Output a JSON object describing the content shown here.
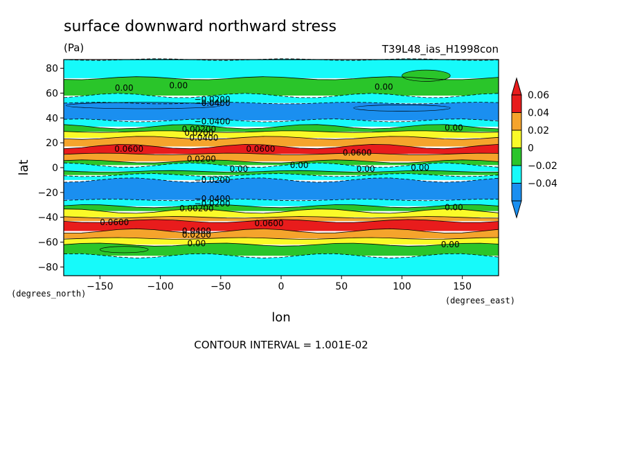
{
  "chart_data": {
    "type": "heatmap",
    "title": "surface downward northward stress",
    "units": "(Pa)",
    "run_label": "T39L48_ias_H1998con",
    "xlabel": "lon",
    "ylabel": "lat",
    "x_units_note": "(degrees_east)",
    "y_units_note": "(degrees_north)",
    "xlim": [
      -180,
      180
    ],
    "ylim": [
      -87,
      87
    ],
    "x_ticks": [
      -150,
      -100,
      -50,
      0,
      50,
      100,
      150
    ],
    "y_ticks": [
      80,
      60,
      40,
      20,
      0,
      -20,
      -40,
      -60,
      -80
    ],
    "x_tick_labels": [
      "−150",
      "−100",
      "−50",
      "0",
      "50",
      "100",
      "150"
    ],
    "y_tick_labels": [
      "80",
      "60",
      "40",
      "20",
      "0",
      "−20",
      "−40",
      "−60",
      "−80"
    ],
    "footer": "CONTOUR INTERVAL = 1.001E-02",
    "colorbar": {
      "labels": [
        "0.06",
        "0.04",
        "0.02",
        "0",
        "−0.02",
        "−0.04"
      ],
      "levels": [
        0.06,
        0.04,
        0.02,
        0,
        -0.02,
        -0.04
      ],
      "colors": [
        "#e81c1c",
        "#f5a42c",
        "#fafa28",
        "#2ac52a",
        "#16fafa",
        "#1a8ff0"
      ],
      "extend": "both"
    },
    "bands": [
      {
        "lat_top": 87,
        "lat_bottom": 72,
        "value": -0.005
      },
      {
        "lat_top": 72,
        "lat_bottom": 58,
        "value": 0.005
      },
      {
        "lat_top": 58,
        "lat_bottom": 52,
        "value": -0.015
      },
      {
        "lat_top": 52,
        "lat_bottom": 38,
        "value": -0.035
      },
      {
        "lat_top": 38,
        "lat_bottom": 33,
        "value": -0.015
      },
      {
        "lat_top": 33,
        "lat_bottom": 29,
        "value": 0.005
      },
      {
        "lat_top": 29,
        "lat_bottom": 24,
        "value": 0.015
      },
      {
        "lat_top": 24,
        "lat_bottom": 17,
        "value": 0.035
      },
      {
        "lat_top": 17,
        "lat_bottom": 11,
        "value": 0.065
      },
      {
        "lat_top": 11,
        "lat_bottom": 5,
        "value": 0.035
      },
      {
        "lat_top": 5,
        "lat_bottom": 2,
        "value": 0.005
      },
      {
        "lat_top": 2,
        "lat_bottom": -3,
        "value": -0.005
      },
      {
        "lat_top": -3,
        "lat_bottom": -6,
        "value": 0.005
      },
      {
        "lat_top": -6,
        "lat_bottom": -10,
        "value": -0.015
      },
      {
        "lat_top": -10,
        "lat_bottom": -26,
        "value": -0.035
      },
      {
        "lat_top": -26,
        "lat_bottom": -31,
        "value": -0.015
      },
      {
        "lat_top": -31,
        "lat_bottom": -35,
        "value": 0.005
      },
      {
        "lat_top": -35,
        "lat_bottom": -40,
        "value": 0.015
      },
      {
        "lat_top": -40,
        "lat_bottom": -43,
        "value": 0.035
      },
      {
        "lat_top": -43,
        "lat_bottom": -51,
        "value": 0.065
      },
      {
        "lat_top": -51,
        "lat_bottom": -57,
        "value": 0.035
      },
      {
        "lat_top": -57,
        "lat_bottom": -62,
        "value": 0.015
      },
      {
        "lat_top": -62,
        "lat_bottom": -71,
        "value": 0.005
      },
      {
        "lat_top": -71,
        "lat_bottom": -87,
        "value": -0.005
      }
    ],
    "patches": [
      {
        "lon_range": [
          -178,
          -50
        ],
        "lat_range": [
          48,
          52
        ],
        "value": -0.045
      },
      {
        "lon_range": [
          60,
          140
        ],
        "lat_range": [
          46,
          50
        ],
        "value": -0.045
      },
      {
        "lon_range": [
          -150,
          -110
        ],
        "lat_range": [
          -64,
          -68
        ],
        "value": 0.005
      },
      {
        "lon_range": [
          100,
          140
        ],
        "lat_range": [
          70,
          78
        ],
        "value": 0.005
      }
    ],
    "contour_labels": [
      {
        "text": "0.00",
        "lon": -130,
        "lat": 64
      },
      {
        "text": "0.00",
        "lon": -85,
        "lat": 66
      },
      {
        "text": "0.00",
        "lon": 85,
        "lat": 65
      },
      {
        "text": "0.00",
        "lon": 143,
        "lat": 32
      },
      {
        "text": "−0.0200",
        "lon": -57,
        "lat": 55
      },
      {
        "text": "−0.0400",
        "lon": -57,
        "lat": 52
      },
      {
        "text": "−0.0400",
        "lon": -57,
        "lat": 37
      },
      {
        "text": "0.00200",
        "lon": -68,
        "lat": 31
      },
      {
        "text": "0.0200",
        "lon": -68,
        "lat": 28
      },
      {
        "text": "0.0400",
        "lon": -64,
        "lat": 24
      },
      {
        "text": "0.0600",
        "lon": -126,
        "lat": 15
      },
      {
        "text": "0.0600",
        "lon": -17,
        "lat": 15
      },
      {
        "text": "0.0600",
        "lon": 63,
        "lat": 12
      },
      {
        "text": "0.0200",
        "lon": -66,
        "lat": 7
      },
      {
        "text": "0.00",
        "lon": -35,
        "lat": -1
      },
      {
        "text": "0.00",
        "lon": 15,
        "lat": 2
      },
      {
        "text": "0.00",
        "lon": 70,
        "lat": -1
      },
      {
        "text": "0.00",
        "lon": 115,
        "lat": 0
      },
      {
        "text": "−0.0200",
        "lon": -57,
        "lat": -10
      },
      {
        "text": "−0.0400",
        "lon": -57,
        "lat": -25
      },
      {
        "text": "−0.0200",
        "lon": -57,
        "lat": -29
      },
      {
        "text": "0.00200",
        "lon": -70,
        "lat": -33
      },
      {
        "text": "0.00",
        "lon": 143,
        "lat": -32
      },
      {
        "text": "0.0600",
        "lon": -138,
        "lat": -44
      },
      {
        "text": "0.0600",
        "lon": -10,
        "lat": -45
      },
      {
        "text": "0.0400",
        "lon": -70,
        "lat": -51
      },
      {
        "text": "0.0200",
        "lon": -70,
        "lat": -54
      },
      {
        "text": "0.00",
        "lon": -70,
        "lat": -61
      },
      {
        "text": "0.00",
        "lon": 140,
        "lat": -62
      }
    ]
  }
}
